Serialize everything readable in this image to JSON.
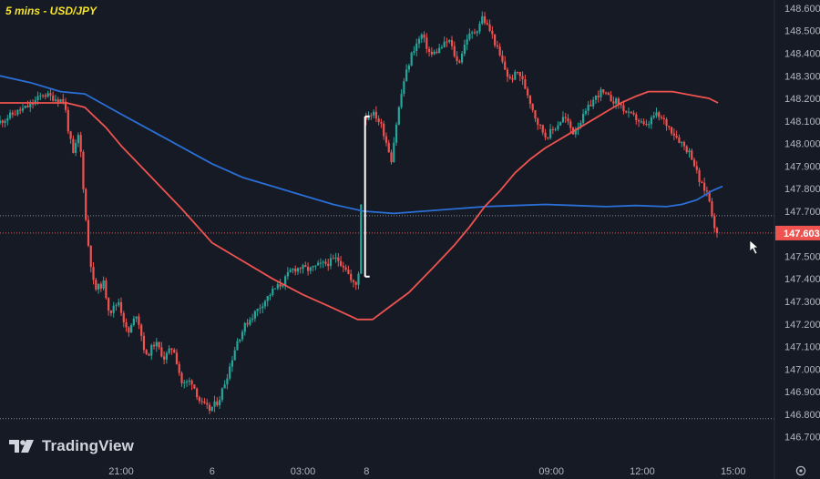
{
  "chart_data": {
    "type": "candlestick",
    "title": "5 mins - USD/JPY",
    "colors": {
      "background": "#161a25",
      "up": "#26a69a",
      "down": "#ef5350",
      "ma_fast": "#ef5350",
      "ma_slow": "#2a6fd6",
      "axis_text": "#b2b5be",
      "price_tag": "#ef5350",
      "grid_line": "#5d606b",
      "gap_bracket": "#ffffff"
    },
    "y_range": [
      146.65,
      148.62
    ],
    "y_ticks": [
      "148.600",
      "148.500",
      "148.400",
      "148.300",
      "148.200",
      "148.100",
      "148.000",
      "147.900",
      "147.800",
      "147.700",
      "147.500",
      "147.400",
      "147.300",
      "147.200",
      "147.100",
      "147.000",
      "146.900",
      "146.800",
      "146.700"
    ],
    "x_ticks": [
      {
        "label": "21:00",
        "t": 21.0
      },
      {
        "label": "6",
        "t": 24.0
      },
      {
        "label": "03:00",
        "t": 27.0
      },
      {
        "label": "8",
        "t": 29.1
      },
      {
        "label": "09:00",
        "t": 35.2
      },
      {
        "label": "12:00",
        "t": 38.2
      },
      {
        "label": "15:00",
        "t": 41.2
      }
    ],
    "last_price": "147.603",
    "reference_lines": [
      147.68,
      146.78
    ],
    "weekend_gap": {
      "t": 29.05,
      "from": 147.41,
      "to": 148.12
    },
    "price_path": [
      [
        17.0,
        148.09
      ],
      [
        17.5,
        148.13
      ],
      [
        18.1,
        148.17
      ],
      [
        18.5,
        148.22
      ],
      [
        18.9,
        148.2
      ],
      [
        19.2,
        148.19
      ],
      [
        19.35,
        148.05
      ],
      [
        19.5,
        147.95
      ],
      [
        19.7,
        148.05
      ],
      [
        19.95,
        147.6
      ],
      [
        20.2,
        147.35
      ],
      [
        20.5,
        147.38
      ],
      [
        20.7,
        147.25
      ],
      [
        21.0,
        147.3
      ],
      [
        21.3,
        147.15
      ],
      [
        21.6,
        147.25
      ],
      [
        21.9,
        147.05
      ],
      [
        22.2,
        147.12
      ],
      [
        22.5,
        147.05
      ],
      [
        22.8,
        147.1
      ],
      [
        23.1,
        146.93
      ],
      [
        23.4,
        146.95
      ],
      [
        23.7,
        146.85
      ],
      [
        24.0,
        146.82
      ],
      [
        24.3,
        146.86
      ],
      [
        24.6,
        146.98
      ],
      [
        24.9,
        147.12
      ],
      [
        25.2,
        147.2
      ],
      [
        25.5,
        147.25
      ],
      [
        25.8,
        147.3
      ],
      [
        26.1,
        147.35
      ],
      [
        26.4,
        147.38
      ],
      [
        26.7,
        147.44
      ],
      [
        27.0,
        147.45
      ],
      [
        27.3,
        147.44
      ],
      [
        27.6,
        147.46
      ],
      [
        27.9,
        147.47
      ],
      [
        28.2,
        147.49
      ],
      [
        28.5,
        147.45
      ],
      [
        28.7,
        147.38
      ],
      [
        28.9,
        147.37
      ],
      [
        29.1,
        148.1
      ],
      [
        29.3,
        148.14
      ],
      [
        29.5,
        148.12
      ],
      [
        29.7,
        148.07
      ],
      [
        30.0,
        147.93
      ],
      [
        30.2,
        148.12
      ],
      [
        30.4,
        148.27
      ],
      [
        30.7,
        148.41
      ],
      [
        31.0,
        148.48
      ],
      [
        31.3,
        148.39
      ],
      [
        31.6,
        148.42
      ],
      [
        31.9,
        148.46
      ],
      [
        32.2,
        148.35
      ],
      [
        32.5,
        148.47
      ],
      [
        32.8,
        148.5
      ],
      [
        33.0,
        148.56
      ],
      [
        33.3,
        148.49
      ],
      [
        33.6,
        148.38
      ],
      [
        33.9,
        148.28
      ],
      [
        34.2,
        148.32
      ],
      [
        34.5,
        148.22
      ],
      [
        34.8,
        148.1
      ],
      [
        35.1,
        148.03
      ],
      [
        35.4,
        148.07
      ],
      [
        35.7,
        148.12
      ],
      [
        36.0,
        148.05
      ],
      [
        36.3,
        148.11
      ],
      [
        36.6,
        148.18
      ],
      [
        36.9,
        148.23
      ],
      [
        37.2,
        148.2
      ],
      [
        37.5,
        148.18
      ],
      [
        37.8,
        148.13
      ],
      [
        38.1,
        148.11
      ],
      [
        38.4,
        148.07
      ],
      [
        38.7,
        148.13
      ],
      [
        39.0,
        148.1
      ],
      [
        39.3,
        148.05
      ],
      [
        39.6,
        148.0
      ],
      [
        39.9,
        147.95
      ],
      [
        40.2,
        147.82
      ],
      [
        40.45,
        147.78
      ],
      [
        40.6,
        147.68
      ],
      [
        40.72,
        147.603
      ]
    ],
    "ma_slow": [
      [
        17.0,
        148.3
      ],
      [
        18.0,
        148.27
      ],
      [
        19.0,
        148.23
      ],
      [
        19.8,
        148.22
      ],
      [
        21.0,
        148.13
      ],
      [
        22.5,
        148.02
      ],
      [
        24.0,
        147.91
      ],
      [
        25.0,
        147.85
      ],
      [
        26.0,
        147.81
      ],
      [
        27.0,
        147.77
      ],
      [
        28.0,
        147.73
      ],
      [
        29.0,
        147.7
      ],
      [
        30.0,
        147.69
      ],
      [
        31.0,
        147.7
      ],
      [
        32.0,
        147.71
      ],
      [
        33.0,
        147.72
      ],
      [
        34.0,
        147.725
      ],
      [
        35.0,
        147.73
      ],
      [
        36.0,
        147.725
      ],
      [
        37.0,
        147.72
      ],
      [
        38.0,
        147.725
      ],
      [
        39.0,
        147.72
      ],
      [
        39.5,
        147.73
      ],
      [
        40.0,
        147.75
      ],
      [
        40.5,
        147.79
      ],
      [
        40.85,
        147.81
      ]
    ],
    "ma_fast": [
      [
        17.0,
        148.18
      ],
      [
        18.0,
        148.18
      ],
      [
        19.2,
        148.18
      ],
      [
        19.8,
        148.16
      ],
      [
        20.5,
        148.07
      ],
      [
        21.0,
        147.99
      ],
      [
        22.0,
        147.85
      ],
      [
        23.0,
        147.71
      ],
      [
        24.0,
        147.56
      ],
      [
        25.0,
        147.48
      ],
      [
        26.0,
        147.4
      ],
      [
        27.0,
        147.33
      ],
      [
        28.0,
        147.27
      ],
      [
        28.8,
        147.22
      ],
      [
        29.3,
        147.22
      ],
      [
        29.8,
        147.27
      ],
      [
        30.5,
        147.34
      ],
      [
        31.3,
        147.45
      ],
      [
        32.0,
        147.55
      ],
      [
        32.5,
        147.63
      ],
      [
        33.0,
        147.72
      ],
      [
        33.5,
        147.79
      ],
      [
        34.0,
        147.87
      ],
      [
        34.5,
        147.93
      ],
      [
        35.0,
        147.98
      ],
      [
        35.5,
        148.02
      ],
      [
        36.0,
        148.06
      ],
      [
        36.5,
        148.1
      ],
      [
        37.0,
        148.14
      ],
      [
        37.5,
        148.18
      ],
      [
        38.0,
        148.21
      ],
      [
        38.4,
        148.23
      ],
      [
        38.8,
        148.23
      ],
      [
        39.2,
        148.23
      ],
      [
        39.6,
        148.22
      ],
      [
        40.0,
        148.21
      ],
      [
        40.4,
        148.2
      ],
      [
        40.7,
        148.18
      ]
    ]
  },
  "footer": {
    "brand": "TradingView"
  }
}
